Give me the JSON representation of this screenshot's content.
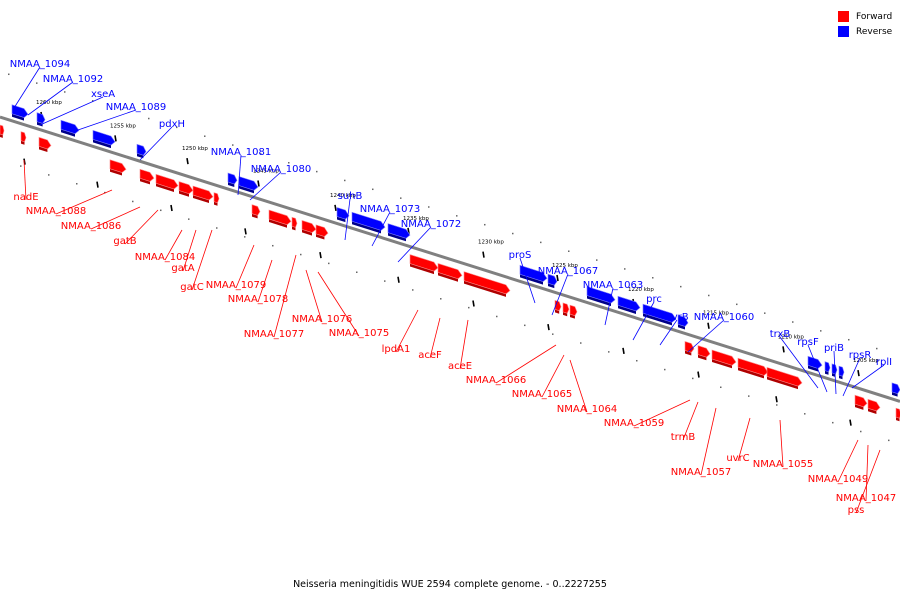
{
  "legend": [
    {
      "label": "Forward",
      "color": "#ff0000"
    },
    {
      "label": "Reverse",
      "color": "#0000ff"
    }
  ],
  "caption": "Neisseria meningitidis WUE 2594 complete genome. - 0..2227255",
  "colors": {
    "forward": "#ff0000",
    "reverse": "#0000ff",
    "backbone": "#808080"
  },
  "scale_labels": [
    "1260 kbp",
    "1255 kbp",
    "1250 kbp",
    "1245 kbp",
    "1240 kbp",
    "1235 kbp",
    "1230 kbp",
    "1225 kbp",
    "1220 kbp",
    "1215 kbp",
    "1210 kbp",
    "1205 kbp"
  ],
  "reverse_genes": [
    "NMAA_1094",
    "NMAA_1092",
    "xseA",
    "NMAA_1089",
    "pdxH",
    "NMAA_1081",
    "NMAA_1080",
    "suhB",
    "NMAA_1073",
    "NMAA_1072",
    "proS",
    "NMAA_1067",
    "NMAA_1063",
    "prc",
    "uvrB",
    "NMAA_1060",
    "trxB",
    "rpsF",
    "priB",
    "rpsR",
    "rplI"
  ],
  "forward_genes": [
    "nadE",
    "NMAA_1088",
    "NMAA_1086",
    "gatB",
    "NMAA_1084",
    "gatA",
    "gatC",
    "NMAA_1079",
    "NMAA_1078",
    "NMAA_1077",
    "NMAA_1076",
    "NMAA_1075",
    "lpdA1",
    "aceF",
    "aceE",
    "NMAA_1066",
    "NMAA_1065",
    "NMAA_1064",
    "NMAA_1059",
    "trmB",
    "NMAA_1057",
    "uvrC",
    "NMAA_1055",
    "NMAA_1049",
    "NMAA_1047",
    "pss"
  ]
}
